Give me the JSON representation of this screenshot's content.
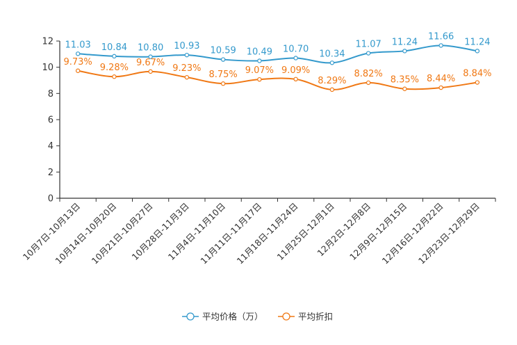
{
  "chart_data": {
    "type": "line",
    "categories": [
      "10月7日-10月13日",
      "10月14日-10月20日",
      "10月21日-10月27日",
      "10月28日-11月3日",
      "11月4日-11月10日",
      "11月11日-11月17日",
      "11月18日-11月24日",
      "11月25日-12月1日",
      "12月2日-12月8日",
      "12月9日-12月15日",
      "12月16日-12月22日",
      "12月23日-12月29日"
    ],
    "series": [
      {
        "name": "平均价格（万）",
        "color": "#3399cc",
        "values": [
          11.03,
          10.84,
          10.8,
          10.93,
          10.59,
          10.49,
          10.7,
          10.34,
          11.07,
          11.24,
          11.66,
          11.24
        ],
        "labels": [
          "11.03",
          "10.84",
          "10.80",
          "10.93",
          "10.59",
          "10.49",
          "10.70",
          "10.34",
          "11.07",
          "11.24",
          "11.66",
          "11.24"
        ]
      },
      {
        "name": "平均折扣",
        "color": "#f07814",
        "values": [
          9.73,
          9.28,
          9.67,
          9.23,
          8.75,
          9.07,
          9.09,
          8.29,
          8.82,
          8.35,
          8.44,
          8.84
        ],
        "labels": [
          "9.73%",
          "9.28%",
          "9.67%",
          "9.23%",
          "8.75%",
          "9.07%",
          "9.09%",
          "8.29%",
          "8.82%",
          "8.35%",
          "8.44%",
          "8.84%"
        ]
      }
    ],
    "yticks": [
      "0",
      "2",
      "4",
      "6",
      "8",
      "10",
      "12"
    ],
    "ylim": [
      0,
      12
    ],
    "legend_position": "bottom-center",
    "grid": false
  }
}
